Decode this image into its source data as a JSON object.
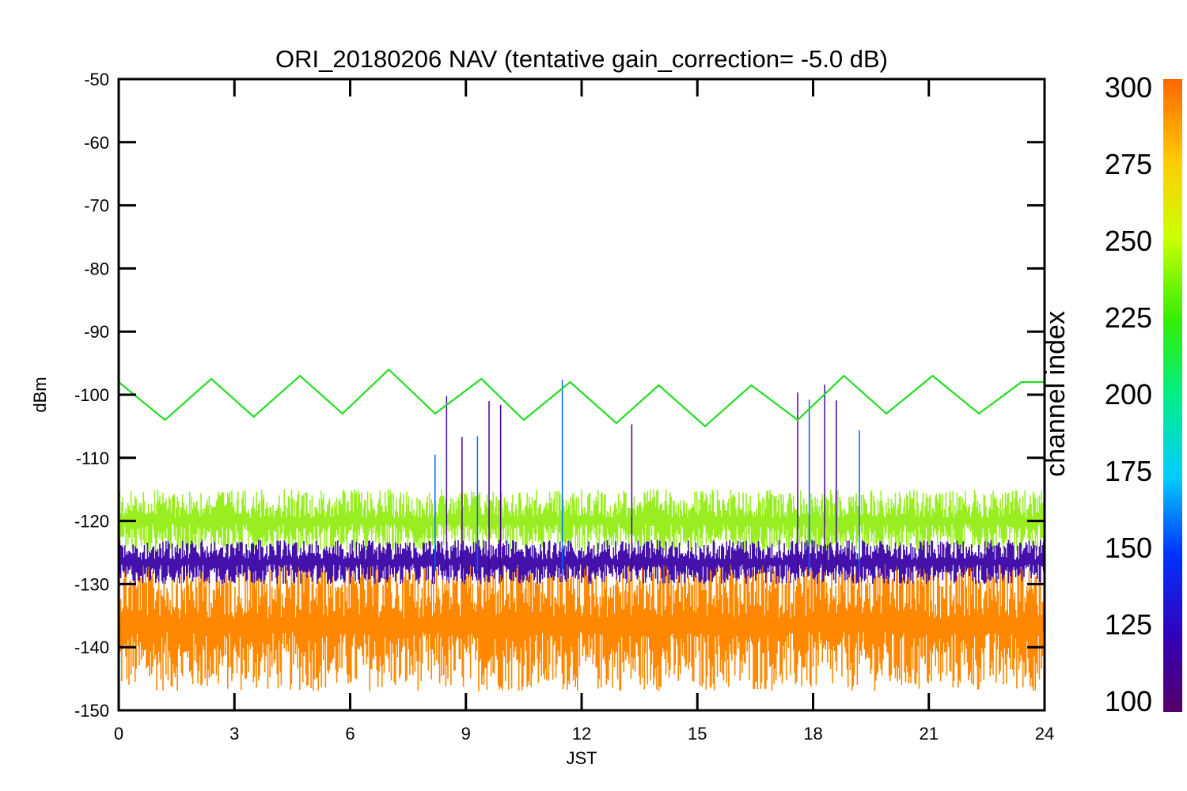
{
  "chart_data": {
    "type": "line",
    "title": "ORI_20180206 NAV (tentative gain_correction= -5.0 dB)",
    "xlabel": "JST",
    "ylabel": "dBm",
    "xlim": [
      0,
      24
    ],
    "ylim": [
      -150,
      -50
    ],
    "x_ticks": [
      0,
      3,
      6,
      9,
      12,
      15,
      18,
      21,
      24
    ],
    "y_ticks": [
      -50,
      -60,
      -70,
      -80,
      -90,
      -100,
      -110,
      -120,
      -130,
      -140,
      -150
    ],
    "colorbar": {
      "label": "channel index",
      "range": [
        100,
        300
      ],
      "ticks": [
        300,
        275,
        250,
        225,
        200,
        175,
        150,
        125,
        100
      ]
    },
    "series": [
      {
        "channel": 230,
        "color": "#22dd22",
        "kind": "sinusoid",
        "x": [
          0,
          1.2,
          2.4,
          3.5,
          4.7,
          5.8,
          7.0,
          8.2,
          9.4,
          10.5,
          11.7,
          12.9,
          14.0,
          15.2,
          16.4,
          17.6,
          18.8,
          19.9,
          21.1,
          22.3,
          23.4,
          24
        ],
        "y": [
          -98,
          -104,
          -97.5,
          -103.5,
          -97,
          -103,
          -96,
          -103,
          -97.5,
          -104,
          -98,
          -104.5,
          -98.5,
          -105,
          -98.5,
          -104,
          -97,
          -103,
          -97,
          -103,
          -98,
          -98
        ]
      },
      {
        "channel": 255,
        "color": "#99ee22",
        "kind": "noise-band",
        "band": [
          -125,
          -115
        ]
      },
      {
        "channel": 115,
        "color": "#4411aa",
        "kind": "noise-band",
        "band": [
          -130,
          -123
        ]
      },
      {
        "channel": 280,
        "color": "#ff8800",
        "kind": "noise-band",
        "band": [
          -147,
          -126
        ]
      }
    ],
    "spike_times": [
      8.2,
      8.5,
      8.9,
      9.3,
      9.6,
      9.9,
      11.5,
      13.3,
      17.6,
      17.9,
      18.3,
      18.6,
      19.2
    ]
  }
}
